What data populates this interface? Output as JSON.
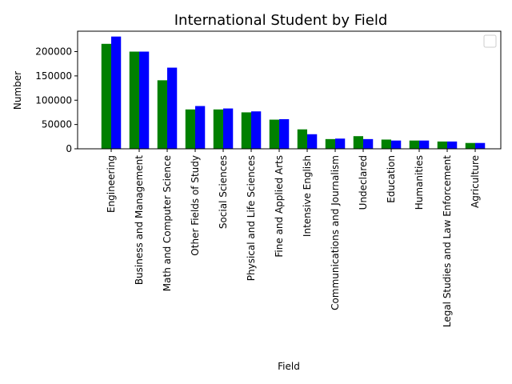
{
  "chart_data": {
    "type": "bar",
    "title": "International Student by Field",
    "xlabel": "Field",
    "ylabel": "Number",
    "categories": [
      "Engineering",
      "Business and Management",
      "Math and Computer Science",
      "Other Fields of Study",
      "Social Sciences",
      "Physical and Life Sciences",
      "Fine and Applied Arts",
      "Intensive English",
      "Communications and Journalism",
      "Undeclared",
      "Education",
      "Humanities",
      "Legal Studies and Law Enforcement",
      "Agriculture"
    ],
    "series": [
      {
        "color": "#008000",
        "values": [
          216000,
          200000,
          141000,
          81000,
          81000,
          75000,
          60000,
          40000,
          20000,
          26000,
          19000,
          17000,
          15000,
          12000
        ]
      },
      {
        "color": "#0000ff",
        "values": [
          231000,
          200000,
          167000,
          88000,
          83000,
          77000,
          61000,
          30000,
          21000,
          20000,
          17000,
          17000,
          15000,
          12000
        ]
      }
    ],
    "yticks": [
      0,
      50000,
      100000,
      150000,
      200000
    ],
    "ylim": [
      0,
      242000
    ],
    "legend": {
      "placement": "top-right",
      "entries": []
    },
    "grid": false
  }
}
